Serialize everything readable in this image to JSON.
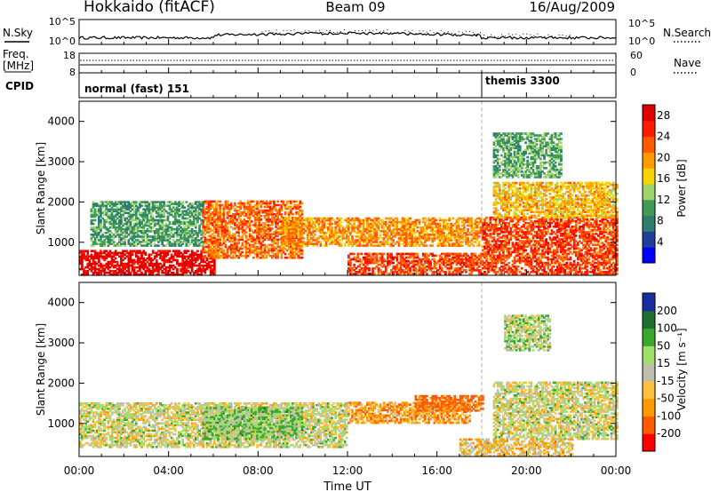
{
  "header": {
    "station": "Hokkaido (fitACF)",
    "beam": "Beam 09",
    "date": "16/Aug/2009"
  },
  "top_panels": {
    "nsky_label": "N.Sky",
    "nsky_ticks": [
      "10^5",
      "10^0"
    ],
    "nsearch_label": "N.Search",
    "nsearch_ticks": [
      "10^5",
      "10^0"
    ],
    "freq_label_1": "Freq.",
    "freq_label_2": "[MHz]",
    "freq_ticks": [
      "18",
      "8"
    ],
    "nave_label": "Nave",
    "nave_ticks": [
      "60",
      "0"
    ],
    "cpid_label": "CPID",
    "cpid_segments": [
      {
        "name": "normal (fast) 151",
        "start_hour": 0
      },
      {
        "name": "themis 3300",
        "start_hour": 18.0
      }
    ]
  },
  "x_axis": {
    "label": "Time UT",
    "tick_labels": [
      "00:00",
      "04:00",
      "08:00",
      "12:00",
      "16:00",
      "20:00",
      "00:00"
    ]
  },
  "colors": {
    "power_scale": [
      "#0000ff",
      "#1f3f9a",
      "#2e7d6e",
      "#3e9c57",
      "#9fd46a",
      "#f5d400",
      "#ff9a00",
      "#ff5a00",
      "#ff1a00",
      "#e00000"
    ],
    "velocity_scale": [
      "#ff0000",
      "#ff5a00",
      "#ff9900",
      "#ffc040",
      "#bfbfb0",
      "#9fe06a",
      "#3aa82a",
      "#1e6e30",
      "#1a2ea0"
    ]
  },
  "chart_data": [
    {
      "type": "heatmap",
      "title": "",
      "ylabel": "Slant Range [km]",
      "xlabel": "Time UT",
      "x_unit": "hours UT",
      "xlim": [
        0,
        24
      ],
      "ylim": [
        180,
        4500
      ],
      "y_ticks": [
        1000,
        2000,
        3000,
        4000
      ],
      "colorbar": {
        "label": "Power [dB]",
        "ticks": [
          4,
          8,
          12,
          16,
          20,
          24,
          28
        ],
        "range": [
          0,
          30
        ]
      },
      "features": [
        {
          "t0": 0.0,
          "t1": 6.0,
          "r0": 180,
          "r1": 800,
          "value": 29
        },
        {
          "t0": 0.5,
          "t1": 5.5,
          "r0": 900,
          "r1": 2000,
          "value": 10
        },
        {
          "t0": 5.5,
          "t1": 10.0,
          "r0": 600,
          "r1": 2000,
          "value": 22
        },
        {
          "t0": 9.0,
          "t1": 18.0,
          "r0": 900,
          "r1": 1600,
          "value": 20
        },
        {
          "t0": 12.0,
          "t1": 18.0,
          "r0": 200,
          "r1": 700,
          "value": 24
        },
        {
          "t0": 18.0,
          "t1": 24.0,
          "r0": 200,
          "r1": 1600,
          "value": 24
        },
        {
          "t0": 18.5,
          "t1": 24.0,
          "r0": 1600,
          "r1": 2500,
          "value": 18
        },
        {
          "t0": 18.5,
          "t1": 21.5,
          "r0": 2600,
          "r1": 3700,
          "value": 11
        }
      ]
    },
    {
      "type": "heatmap",
      "title": "",
      "ylabel": "Slant Range [km]",
      "xlabel": "Time UT",
      "x_unit": "hours UT",
      "xlim": [
        0,
        24
      ],
      "ylim": [
        180,
        4500
      ],
      "y_ticks": [
        1000,
        2000,
        3000,
        4000
      ],
      "colorbar": {
        "label": "Velocity [m s⁻¹]",
        "ticks": [
          "200",
          "100",
          "50",
          "15",
          "-15",
          "-50",
          "-100",
          "-200"
        ],
        "range": [
          -250,
          250
        ]
      },
      "features": [
        {
          "t0": 0.0,
          "t1": 12.0,
          "r0": 400,
          "r1": 1500,
          "value": 0
        },
        {
          "t0": 5.5,
          "t1": 10.0,
          "r0": 600,
          "r1": 1400,
          "value": 40
        },
        {
          "t0": 12.0,
          "t1": 17.5,
          "r0": 1000,
          "r1": 1500,
          "value": -70
        },
        {
          "t0": 15.0,
          "t1": 18.0,
          "r0": 1300,
          "r1": 1700,
          "value": -120
        },
        {
          "t0": 18.5,
          "t1": 24.0,
          "r0": 600,
          "r1": 2000,
          "value": 0
        },
        {
          "t0": 17.0,
          "t1": 22.0,
          "r0": 180,
          "r1": 600,
          "value": -40
        },
        {
          "t0": 19.0,
          "t1": 21.0,
          "r0": 2800,
          "r1": 3700,
          "value": 20
        }
      ]
    }
  ]
}
